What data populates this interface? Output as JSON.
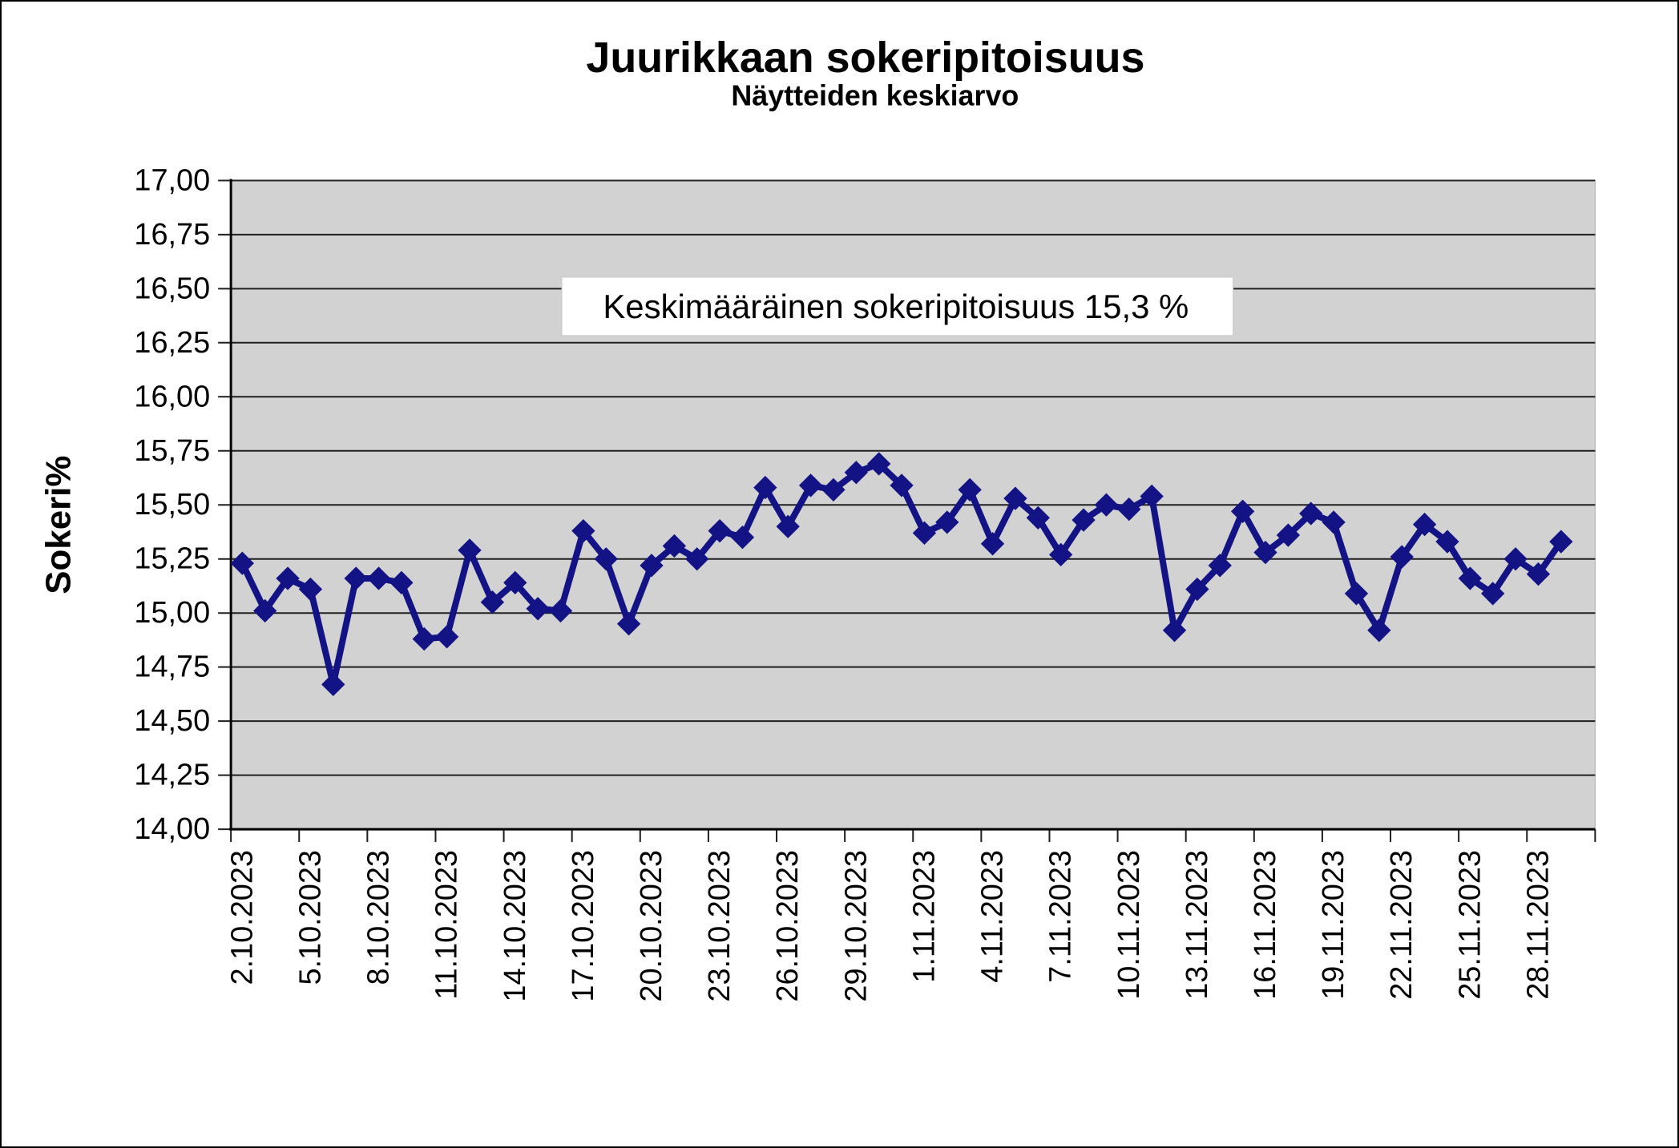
{
  "title": "Juurikkaan sokeripitoisuus",
  "subtitle": "Näytteiden keskiarvo",
  "annotation": {
    "text": "Keskimääräinen sokeripitoisuus 15,3 %"
  },
  "y_axis": {
    "title": "Sokeri%",
    "tick_labels": [
      "14,00",
      "14,25",
      "14,50",
      "14,75",
      "15,00",
      "15,25",
      "15,50",
      "15,75",
      "16,00",
      "16,25",
      "16,50",
      "16,75",
      "17,00"
    ]
  },
  "x_axis": {
    "tick_labels": [
      "2.10.2023",
      "5.10.2023",
      "8.10.2023",
      "11.10.2023",
      "14.10.2023",
      "17.10.2023",
      "20.10.2023",
      "23.10.2023",
      "26.10.2023",
      "29.10.2023",
      "1.11.2023",
      "4.11.2023",
      "7.11.2023",
      "10.11.2023",
      "13.11.2023",
      "16.11.2023",
      "19.11.2023",
      "22.11.2023",
      "25.11.2023",
      "28.11.2023"
    ],
    "label_interval_days": 3
  },
  "colors": {
    "line": "#131385",
    "plot_background": "#d2d2d2",
    "gridline": "#1f1f1f",
    "axis": "#000000",
    "annotation_background": "#ffffff",
    "text": "#000000"
  },
  "chart_data": {
    "type": "line",
    "title": "Juurikkaan sokeripitoisuus",
    "subtitle": "Näytteiden keskiarvo",
    "xlabel": "",
    "ylabel": "Sokeri%",
    "ylim": [
      14.0,
      17.0
    ],
    "y_step": 0.25,
    "grid": "horizontal",
    "legend": "none",
    "marker": "diamond",
    "annotation": "Keskimääräinen sokeripitoisuus 15,3 %",
    "mean_value": 15.3,
    "x": [
      "2.10.2023",
      "3.10.2023",
      "4.10.2023",
      "5.10.2023",
      "6.10.2023",
      "7.10.2023",
      "8.10.2023",
      "9.10.2023",
      "10.10.2023",
      "11.10.2023",
      "12.10.2023",
      "13.10.2023",
      "14.10.2023",
      "15.10.2023",
      "16.10.2023",
      "17.10.2023",
      "18.10.2023",
      "19.10.2023",
      "20.10.2023",
      "21.10.2023",
      "22.10.2023",
      "23.10.2023",
      "24.10.2023",
      "25.10.2023",
      "26.10.2023",
      "27.10.2023",
      "28.10.2023",
      "29.10.2023",
      "30.10.2023",
      "31.10.2023",
      "1.11.2023",
      "2.11.2023",
      "3.11.2023",
      "4.11.2023",
      "5.11.2023",
      "6.11.2023",
      "7.11.2023",
      "8.11.2023",
      "9.11.2023",
      "10.11.2023",
      "11.11.2023",
      "12.11.2023",
      "13.11.2023",
      "14.11.2023",
      "15.11.2023",
      "16.11.2023",
      "17.11.2023",
      "18.11.2023",
      "19.11.2023",
      "20.11.2023",
      "21.11.2023",
      "22.11.2023",
      "23.11.2023",
      "24.11.2023",
      "25.11.2023",
      "26.11.2023",
      "27.11.2023",
      "28.11.2023",
      "29.11.2023"
    ],
    "series": [
      {
        "name": "Sokeri%",
        "values": [
          15.23,
          15.01,
          15.16,
          15.11,
          14.67,
          15.16,
          15.16,
          15.14,
          14.88,
          14.89,
          15.29,
          15.05,
          15.14,
          15.02,
          15.01,
          15.38,
          15.25,
          14.95,
          15.22,
          15.31,
          15.25,
          15.38,
          15.35,
          15.58,
          15.4,
          15.59,
          15.57,
          15.65,
          15.69,
          15.59,
          15.37,
          15.42,
          15.57,
          15.32,
          15.53,
          15.44,
          15.27,
          15.43,
          15.5,
          15.48,
          15.54,
          14.92,
          15.11,
          15.22,
          15.47,
          15.28,
          15.36,
          15.46,
          15.42,
          15.09,
          14.92,
          15.26,
          15.41,
          15.33,
          15.16,
          15.09,
          15.25,
          15.18,
          15.33
        ]
      }
    ]
  }
}
